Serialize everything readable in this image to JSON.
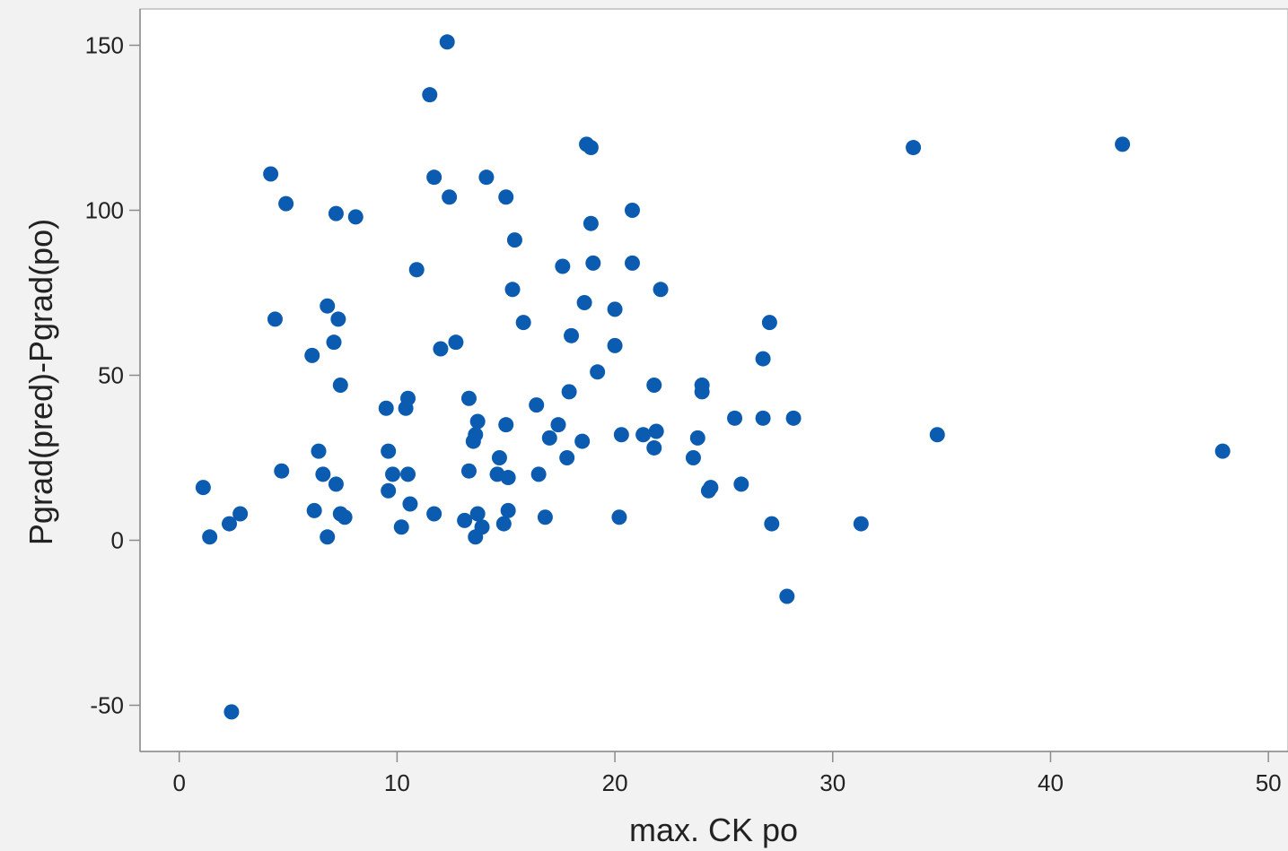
{
  "chart_data": {
    "type": "scatter",
    "xlabel": "max. CK po",
    "ylabel": "Pgrad(pred)-Pgrad(po)",
    "xlim": [
      -1.8,
      50.9
    ],
    "ylim": [
      -64,
      161
    ],
    "xticks": [
      0,
      10,
      20,
      30,
      40,
      50
    ],
    "yticks": [
      -50,
      0,
      50,
      100,
      150
    ],
    "grid": false,
    "marker_color": "#0b5bb0",
    "points": [
      [
        1.1,
        16
      ],
      [
        1.4,
        1
      ],
      [
        2.3,
        5
      ],
      [
        2.4,
        -52
      ],
      [
        2.8,
        8
      ],
      [
        4.2,
        111
      ],
      [
        4.4,
        67
      ],
      [
        4.7,
        21
      ],
      [
        4.9,
        102
      ],
      [
        6.1,
        56
      ],
      [
        6.2,
        9
      ],
      [
        6.4,
        27
      ],
      [
        6.6,
        20
      ],
      [
        6.8,
        71
      ],
      [
        6.8,
        1
      ],
      [
        7.1,
        60
      ],
      [
        7.2,
        99
      ],
      [
        7.2,
        17
      ],
      [
        7.3,
        67
      ],
      [
        7.4,
        47
      ],
      [
        7.4,
        8
      ],
      [
        7.6,
        7
      ],
      [
        8.1,
        98
      ],
      [
        9.5,
        40
      ],
      [
        9.6,
        15
      ],
      [
        9.6,
        27
      ],
      [
        9.8,
        20
      ],
      [
        10.2,
        4
      ],
      [
        10.4,
        40
      ],
      [
        10.5,
        43
      ],
      [
        10.5,
        20
      ],
      [
        10.6,
        11
      ],
      [
        10.9,
        82
      ],
      [
        11.5,
        135
      ],
      [
        11.7,
        110
      ],
      [
        11.7,
        8
      ],
      [
        12.0,
        58
      ],
      [
        12.3,
        151
      ],
      [
        12.4,
        104
      ],
      [
        12.7,
        60
      ],
      [
        13.1,
        6
      ],
      [
        13.3,
        43
      ],
      [
        13.3,
        21
      ],
      [
        13.5,
        30
      ],
      [
        13.6,
        1
      ],
      [
        13.6,
        32
      ],
      [
        13.7,
        36
      ],
      [
        13.7,
        8
      ],
      [
        13.9,
        4
      ],
      [
        14.1,
        110
      ],
      [
        14.6,
        20
      ],
      [
        14.7,
        25
      ],
      [
        14.9,
        5
      ],
      [
        15.0,
        35
      ],
      [
        15.0,
        104
      ],
      [
        15.1,
        19
      ],
      [
        15.1,
        9
      ],
      [
        15.3,
        76
      ],
      [
        15.4,
        91
      ],
      [
        15.8,
        66
      ],
      [
        16.4,
        41
      ],
      [
        16.5,
        20
      ],
      [
        16.8,
        7
      ],
      [
        17.0,
        31
      ],
      [
        17.4,
        35
      ],
      [
        17.6,
        83
      ],
      [
        17.8,
        25
      ],
      [
        17.9,
        45
      ],
      [
        18.0,
        62
      ],
      [
        18.6,
        72
      ],
      [
        18.5,
        30
      ],
      [
        18.7,
        120
      ],
      [
        18.9,
        119
      ],
      [
        18.9,
        96
      ],
      [
        19.0,
        84
      ],
      [
        19.2,
        51
      ],
      [
        20.0,
        70
      ],
      [
        20.0,
        59
      ],
      [
        20.3,
        32
      ],
      [
        20.2,
        7
      ],
      [
        20.8,
        100
      ],
      [
        20.8,
        84
      ],
      [
        21.3,
        32
      ],
      [
        21.8,
        28
      ],
      [
        21.9,
        33
      ],
      [
        21.8,
        47
      ],
      [
        22.1,
        76
      ],
      [
        23.6,
        25
      ],
      [
        23.8,
        31
      ],
      [
        24.0,
        47
      ],
      [
        24.0,
        45
      ],
      [
        24.3,
        15
      ],
      [
        24.4,
        16
      ],
      [
        25.5,
        37
      ],
      [
        25.8,
        17
      ],
      [
        26.8,
        55
      ],
      [
        26.8,
        37
      ],
      [
        27.1,
        66
      ],
      [
        27.2,
        5
      ],
      [
        27.9,
        -17
      ],
      [
        28.2,
        37
      ],
      [
        31.3,
        5
      ],
      [
        33.7,
        119
      ],
      [
        34.8,
        32
      ],
      [
        43.3,
        120
      ],
      [
        47.9,
        27
      ]
    ]
  }
}
